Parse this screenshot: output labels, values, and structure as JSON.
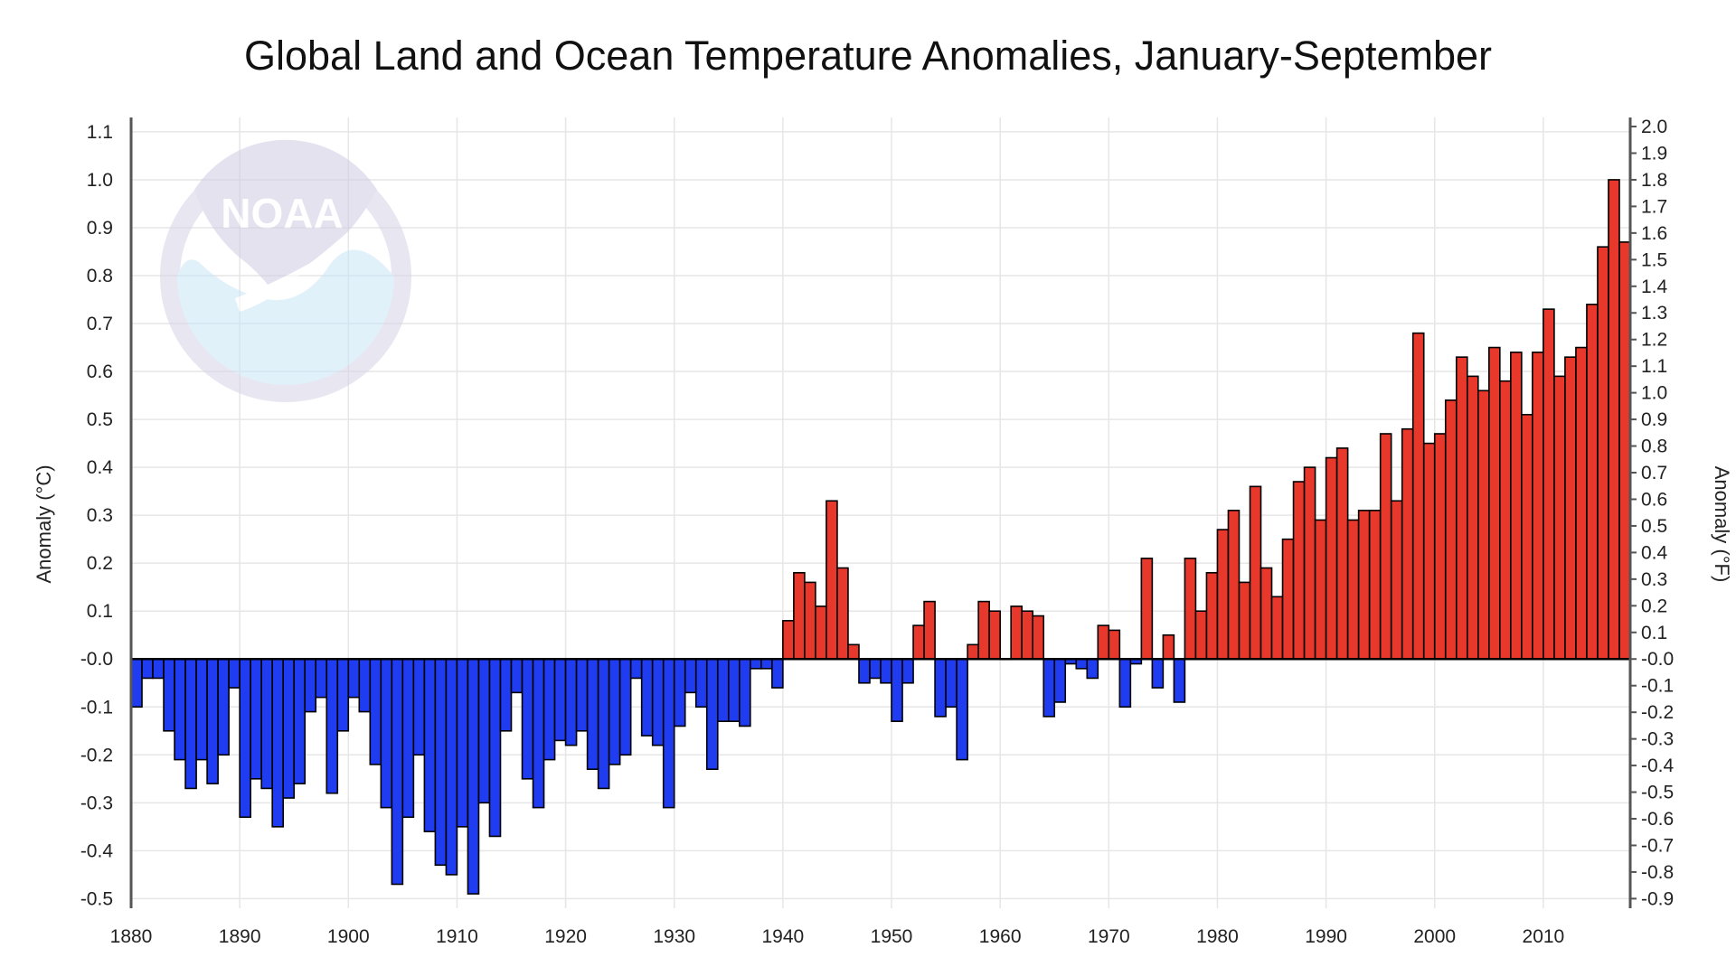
{
  "chart_data": {
    "type": "bar",
    "title": "Global Land and Ocean Temperature Anomalies, January-September",
    "ylabel": "Anomaly (°C)",
    "y2label": "Anomaly (°F)",
    "watermark": "NOAA",
    "ylim": [
      -0.52,
      1.13
    ],
    "y2lim": [
      -0.936,
      2.034
    ],
    "yticks": [
      "-0.5",
      "-0.4",
      "-0.3",
      "-0.2",
      "-0.1",
      "-0.0",
      "0.1",
      "0.2",
      "0.3",
      "0.4",
      "0.5",
      "0.6",
      "0.7",
      "0.8",
      "0.9",
      "1.0",
      "1.1"
    ],
    "y2ticks": [
      "-0.9",
      "-0.8",
      "-0.7",
      "-0.6",
      "-0.5",
      "-0.4",
      "-0.3",
      "-0.2",
      "-0.1",
      "-0.0",
      "0.1",
      "0.2",
      "0.3",
      "0.4",
      "0.5",
      "0.6",
      "0.7",
      "0.8",
      "0.9",
      "1.0",
      "1.1",
      "1.2",
      "1.3",
      "1.4",
      "1.5",
      "1.6",
      "1.7",
      "1.8",
      "1.9",
      "2.0"
    ],
    "xticks": [
      "1880",
      "1890",
      "1900",
      "1910",
      "1920",
      "1930",
      "1940",
      "1950",
      "1960",
      "1970",
      "1980",
      "1990",
      "2000",
      "2010"
    ],
    "x_start": 1880,
    "x_end": 2017,
    "grid": true,
    "colors": {
      "positive": "#e8382b",
      "negative": "#1f3cf0",
      "outline": "#000000",
      "grid": "#e6e6e6",
      "axis": "#555555"
    },
    "years": [
      1880,
      1881,
      1882,
      1883,
      1884,
      1885,
      1886,
      1887,
      1888,
      1889,
      1890,
      1891,
      1892,
      1893,
      1894,
      1895,
      1896,
      1897,
      1898,
      1899,
      1900,
      1901,
      1902,
      1903,
      1904,
      1905,
      1906,
      1907,
      1908,
      1909,
      1910,
      1911,
      1912,
      1913,
      1914,
      1915,
      1916,
      1917,
      1918,
      1919,
      1920,
      1921,
      1922,
      1923,
      1924,
      1925,
      1926,
      1927,
      1928,
      1929,
      1930,
      1931,
      1932,
      1933,
      1934,
      1935,
      1936,
      1937,
      1938,
      1939,
      1940,
      1941,
      1942,
      1943,
      1944,
      1945,
      1946,
      1947,
      1948,
      1949,
      1950,
      1951,
      1952,
      1953,
      1954,
      1955,
      1956,
      1957,
      1958,
      1959,
      1960,
      1961,
      1962,
      1963,
      1964,
      1965,
      1966,
      1967,
      1968,
      1969,
      1970,
      1971,
      1972,
      1973,
      1974,
      1975,
      1976,
      1977,
      1978,
      1979,
      1980,
      1981,
      1982,
      1983,
      1984,
      1985,
      1986,
      1987,
      1988,
      1989,
      1990,
      1991,
      1992,
      1993,
      1994,
      1995,
      1996,
      1997,
      1998,
      1999,
      2000,
      2001,
      2002,
      2003,
      2004,
      2005,
      2006,
      2007,
      2008,
      2009,
      2010,
      2011,
      2012,
      2013,
      2014,
      2015,
      2016,
      2017
    ],
    "values": [
      -0.1,
      -0.04,
      -0.04,
      -0.15,
      -0.21,
      -0.27,
      -0.21,
      -0.26,
      -0.2,
      -0.06,
      -0.33,
      -0.25,
      -0.27,
      -0.35,
      -0.29,
      -0.26,
      -0.11,
      -0.08,
      -0.28,
      -0.15,
      -0.08,
      -0.11,
      -0.22,
      -0.31,
      -0.47,
      -0.33,
      -0.2,
      -0.36,
      -0.43,
      -0.45,
      -0.35,
      -0.49,
      -0.3,
      -0.37,
      -0.15,
      -0.07,
      -0.25,
      -0.31,
      -0.21,
      -0.17,
      -0.18,
      -0.15,
      -0.23,
      -0.27,
      -0.22,
      -0.2,
      -0.04,
      -0.16,
      -0.18,
      -0.31,
      -0.14,
      -0.07,
      -0.1,
      -0.23,
      -0.13,
      -0.13,
      -0.14,
      -0.02,
      -0.02,
      -0.06,
      0.08,
      0.18,
      0.16,
      0.11,
      0.33,
      0.19,
      0.03,
      -0.05,
      -0.04,
      -0.05,
      -0.13,
      -0.05,
      0.07,
      0.12,
      -0.12,
      -0.1,
      -0.21,
      0.03,
      0.12,
      0.1,
      0.0,
      0.11,
      0.1,
      0.09,
      -0.12,
      -0.09,
      -0.01,
      -0.02,
      -0.04,
      0.07,
      0.06,
      -0.1,
      -0.01,
      0.21,
      -0.06,
      0.05,
      -0.09,
      0.21,
      0.1,
      0.18,
      0.27,
      0.31,
      0.16,
      0.36,
      0.19,
      0.13,
      0.25,
      0.37,
      0.4,
      0.29,
      0.42,
      0.44,
      0.29,
      0.31,
      0.31,
      0.47,
      0.33,
      0.48,
      0.68,
      0.45,
      0.47,
      0.54,
      0.63,
      0.59,
      0.56,
      0.65,
      0.58,
      0.64,
      0.51,
      0.64,
      0.73,
      0.59,
      0.63,
      0.65,
      0.74,
      0.86,
      1.0,
      0.87
    ]
  }
}
